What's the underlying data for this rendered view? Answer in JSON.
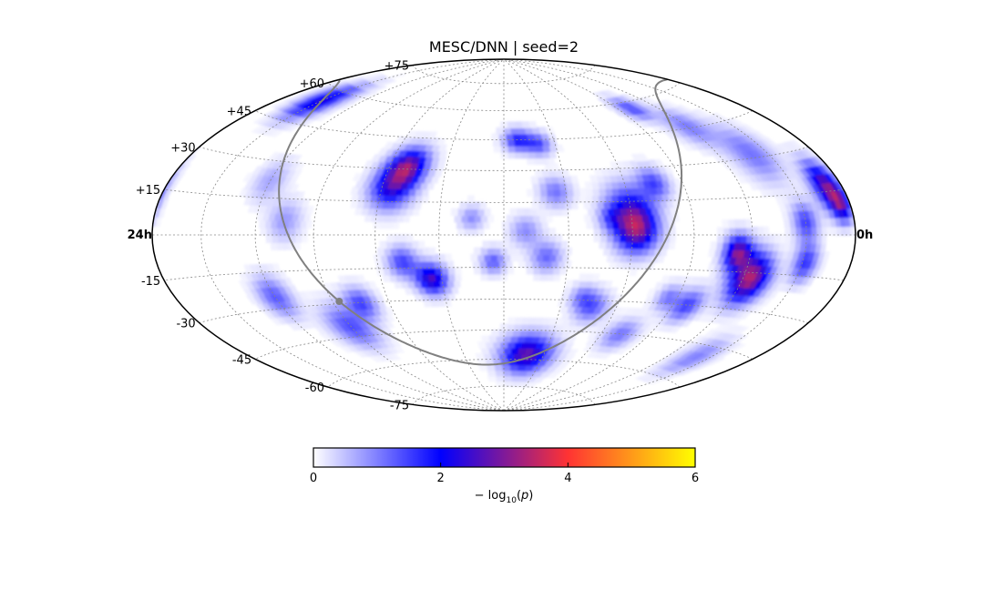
{
  "chart_data": {
    "type": "heatmap",
    "projection": "hammer-aitoff",
    "title": "MESC/DNN | seed=2",
    "ra_labels": {
      "left": "24h",
      "right": "0h"
    },
    "dec_labels": [
      {
        "value": 75,
        "text": "+75"
      },
      {
        "value": 60,
        "text": "+60"
      },
      {
        "value": 45,
        "text": "+45"
      },
      {
        "value": 30,
        "text": "+30"
      },
      {
        "value": 15,
        "text": "+15"
      },
      {
        "value": -15,
        "text": "-15"
      },
      {
        "value": -30,
        "text": "-30"
      },
      {
        "value": -45,
        "text": "-45"
      },
      {
        "value": -60,
        "text": "-60"
      },
      {
        "value": -75,
        "text": "-75"
      }
    ],
    "grid": true,
    "dec_grid_step_deg": 15,
    "ra_grid_step_deg": 30,
    "colorbar": {
      "label": "− log10(p)",
      "min": 0,
      "max": 6,
      "ticks": [
        {
          "value": 0,
          "text": "0"
        },
        {
          "value": 2,
          "text": "2"
        },
        {
          "value": 4,
          "text": "4"
        },
        {
          "value": 6,
          "text": "6"
        }
      ],
      "colors": [
        "#ffffff",
        "#0000ff",
        "#ff3333",
        "#ffff00"
      ]
    },
    "galactic_plane_color": "#808080",
    "galactic_center_marker": {
      "color": "#808080"
    },
    "hotspots": [
      {
        "ra_deg": 56,
        "dec_deg": -17,
        "value": 3.4,
        "sigma_deg": 7
      },
      {
        "ra_deg": 67,
        "dec_deg": -7,
        "value": 2.8,
        "sigma_deg": 5
      },
      {
        "ra_deg": 118,
        "dec_deg": 2,
        "value": 2.6,
        "sigma_deg": 7
      },
      {
        "ra_deg": 120,
        "dec_deg": 12,
        "value": 1.8,
        "sigma_deg": 8
      },
      {
        "ra_deg": 163,
        "dec_deg": -57,
        "value": 2.8,
        "sigma_deg": 7
      },
      {
        "ra_deg": 215,
        "dec_deg": -20,
        "value": 2.6,
        "sigma_deg": 5
      },
      {
        "ra_deg": 228,
        "dec_deg": -12,
        "value": 1.5,
        "sigma_deg": 5
      },
      {
        "ra_deg": 235,
        "dec_deg": 22,
        "value": 2.3,
        "sigma_deg": 7
      },
      {
        "ra_deg": 230,
        "dec_deg": 32,
        "value": 2.6,
        "sigma_deg": 6
      },
      {
        "ra_deg": 330,
        "dec_deg": 55,
        "value": 2.3,
        "sigma_deg": 6
      },
      {
        "ra_deg": 10,
        "dec_deg": 17,
        "value": 2.8,
        "sigma_deg": 6
      },
      {
        "ra_deg": 6,
        "dec_deg": 10,
        "value": 2.0,
        "sigma_deg": 4
      },
      {
        "ra_deg": 30,
        "dec_deg": 5,
        "value": 1.5,
        "sigma_deg": 5
      },
      {
        "ra_deg": 28,
        "dec_deg": -10,
        "value": 1.6,
        "sigma_deg": 5
      },
      {
        "ra_deg": 172,
        "dec_deg": 45,
        "value": 1.7,
        "sigma_deg": 4
      },
      {
        "ra_deg": 160,
        "dec_deg": 43,
        "value": 1.4,
        "sigma_deg": 4
      },
      {
        "ra_deg": 155,
        "dec_deg": 20,
        "value": 1.1,
        "sigma_deg": 5
      },
      {
        "ra_deg": 160,
        "dec_deg": -10,
        "value": 1.2,
        "sigma_deg": 5
      },
      {
        "ra_deg": 105,
        "dec_deg": 23,
        "value": 1.4,
        "sigma_deg": 5
      },
      {
        "ra_deg": 82,
        "dec_deg": -30,
        "value": 1.5,
        "sigma_deg": 5
      },
      {
        "ra_deg": 60,
        "dec_deg": 46,
        "value": 1.0,
        "sigma_deg": 6
      },
      {
        "ra_deg": 40,
        "dec_deg": 32,
        "value": 1.1,
        "sigma_deg": 8
      },
      {
        "ra_deg": 80,
        "dec_deg": 57,
        "value": 1.4,
        "sigma_deg": 4
      },
      {
        "ra_deg": 255,
        "dec_deg": -30,
        "value": 1.4,
        "sigma_deg": 5
      },
      {
        "ra_deg": 270,
        "dec_deg": -40,
        "value": 1.4,
        "sigma_deg": 7
      },
      {
        "ra_deg": 300,
        "dec_deg": -25,
        "value": 1.3,
        "sigma_deg": 6
      },
      {
        "ra_deg": 285,
        "dec_deg": 6,
        "value": 0.8,
        "sigma_deg": 6
      },
      {
        "ra_deg": 300,
        "dec_deg": 22,
        "value": 0.7,
        "sigma_deg": 6
      },
      {
        "ra_deg": 185,
        "dec_deg": -12,
        "value": 1.3,
        "sigma_deg": 4
      },
      {
        "ra_deg": 170,
        "dec_deg": 2,
        "value": 0.9,
        "sigma_deg": 5
      },
      {
        "ra_deg": 195,
        "dec_deg": 8,
        "value": 0.9,
        "sigma_deg": 4
      },
      {
        "ra_deg": 133,
        "dec_deg": -33,
        "value": 1.3,
        "sigma_deg": 5
      },
      {
        "ra_deg": 95,
        "dec_deg": -27,
        "value": 1.0,
        "sigma_deg": 4
      },
      {
        "ra_deg": 140,
        "dec_deg": -28,
        "value": 0.9,
        "sigma_deg": 4
      },
      {
        "ra_deg": 40,
        "dec_deg": -50,
        "value": 1.0,
        "sigma_deg": 6
      },
      {
        "ra_deg": 108,
        "dec_deg": -45,
        "value": 1.1,
        "sigma_deg": 5
      },
      {
        "ra_deg": 130,
        "dec_deg": 8,
        "value": 0.8,
        "sigma_deg": 4
      }
    ]
  }
}
